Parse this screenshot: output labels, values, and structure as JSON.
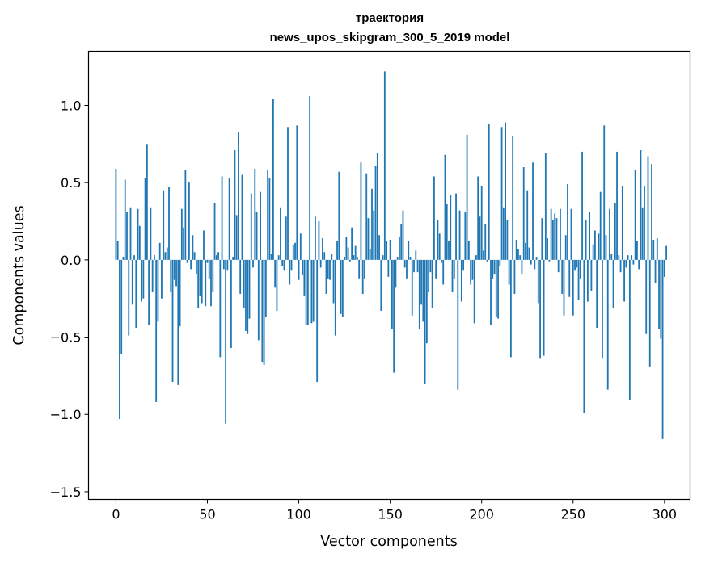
{
  "chart_data": {
    "type": "bar",
    "title_line1": "траектория",
    "title_line2": "news_upos_skipgram_300_5_2019 model",
    "xlabel": "Vector components",
    "ylabel": "Components values",
    "xlim": [
      -15,
      314
    ],
    "ylim": [
      -1.55,
      1.35
    ],
    "x_ticks": [
      0,
      50,
      100,
      150,
      200,
      250,
      300
    ],
    "y_ticks": [
      -1.5,
      -1.0,
      -0.5,
      0.0,
      0.5,
      1.0
    ],
    "y_tick_labels": [
      "−1.5",
      "−1.0",
      "−0.5",
      "0.0",
      "0.5",
      "1.0"
    ],
    "grid": false,
    "bar_color": "#1f77b4",
    "values": [
      0.59,
      0.12,
      -1.03,
      -0.61,
      0.02,
      0.52,
      0.31,
      -0.49,
      0.34,
      -0.29,
      0.03,
      -0.44,
      0.33,
      0.22,
      -0.27,
      -0.25,
      0.53,
      0.75,
      -0.42,
      0.34,
      -0.21,
      0.03,
      -0.92,
      -0.4,
      0.11,
      -0.25,
      0.45,
      0.05,
      0.08,
      0.47,
      -0.21,
      -0.79,
      -0.13,
      -0.17,
      -0.81,
      -0.43,
      0.33,
      0.21,
      0.58,
      -0.02,
      0.5,
      -0.06,
      0.16,
      0.05,
      -0.09,
      -0.31,
      -0.23,
      -0.28,
      0.19,
      -0.3,
      -0.02,
      -0.12,
      -0.3,
      -0.21,
      0.37,
      0.03,
      0.05,
      -0.63,
      0.54,
      -0.06,
      -1.06,
      -0.07,
      0.53,
      -0.57,
      0.02,
      0.71,
      0.29,
      0.83,
      -0.22,
      0.55,
      -0.31,
      -0.46,
      -0.48,
      -0.38,
      0.43,
      -0.05,
      0.59,
      0.31,
      -0.52,
      0.44,
      -0.66,
      -0.68,
      -0.37,
      0.58,
      0.53,
      0.04,
      1.04,
      -0.18,
      -0.33,
      0.03,
      0.34,
      -0.04,
      -0.07,
      0.28,
      0.86,
      -0.16,
      -0.07,
      0.1,
      0.11,
      0.87,
      -0.13,
      0.17,
      -0.1,
      -0.23,
      -0.42,
      -0.42,
      1.06,
      -0.41,
      -0.4,
      0.28,
      -0.79,
      0.25,
      -0.05,
      0.14,
      0.05,
      -0.22,
      -0.12,
      -0.13,
      0.04,
      -0.28,
      -0.49,
      0.12,
      0.57,
      -0.35,
      -0.37,
      0.02,
      0.15,
      0.08,
      -0.01,
      0.21,
      0.03,
      0.09,
      0.02,
      -0.12,
      0.63,
      -0.22,
      -0.12,
      0.56,
      0.27,
      0.07,
      0.46,
      0.32,
      0.61,
      0.69,
      0.16,
      -0.33,
      0.03,
      1.22,
      0.12,
      -0.11,
      0.13,
      -0.45,
      -0.73,
      -0.18,
      0.02,
      0.15,
      0.23,
      0.32,
      -0.05,
      -0.12,
      0.12,
      0.02,
      -0.36,
      -0.08,
      0.06,
      -0.08,
      -0.45,
      -0.29,
      -0.4,
      -0.8,
      -0.54,
      -0.21,
      -0.08,
      -0.31,
      0.54,
      -0.12,
      0.26,
      0.17,
      -0.02,
      -0.16,
      0.68,
      0.36,
      0.12,
      0.42,
      -0.21,
      -0.12,
      0.43,
      -0.84,
      0.32,
      -0.27,
      -0.07,
      0.31,
      0.81,
      0.12,
      -0.16,
      -0.13,
      -0.41,
      0.03,
      0.54,
      0.28,
      0.48,
      0.06,
      0.23,
      -0.01,
      0.88,
      -0.42,
      -0.12,
      -0.09,
      -0.37,
      -0.38,
      -0.04,
      0.86,
      0.34,
      0.89,
      0.26,
      -0.16,
      -0.63,
      0.8,
      -0.22,
      0.13,
      0.07,
      0.03,
      -0.09,
      0.6,
      0.11,
      0.45,
      0.08,
      -0.03,
      0.63,
      -0.06,
      0.02,
      -0.28,
      -0.64,
      0.27,
      -0.62,
      0.69,
      0.14,
      -0.01,
      0.33,
      0.26,
      0.3,
      0.27,
      -0.08,
      0.33,
      -0.22,
      -0.36,
      0.16,
      0.49,
      -0.24,
      0.33,
      -0.36,
      -0.07,
      -0.05,
      -0.26,
      -0.12,
      0.7,
      -0.99,
      0.26,
      -0.27,
      0.31,
      -0.2,
      0.1,
      0.19,
      -0.44,
      0.17,
      0.44,
      -0.64,
      0.87,
      0.16,
      -0.84,
      0.33,
      0.04,
      -0.31,
      0.37,
      0.7,
      0.03,
      -0.08,
      0.48,
      -0.27,
      -0.05,
      0.03,
      -0.91,
      0.03,
      -0.03,
      0.58,
      0.12,
      -0.06,
      0.71,
      0.34,
      0.48,
      -0.48,
      0.67,
      -0.69,
      0.62,
      0.13,
      -0.15,
      0.14,
      -0.45,
      -0.51,
      -1.16,
      -0.11,
      0.09
    ]
  }
}
